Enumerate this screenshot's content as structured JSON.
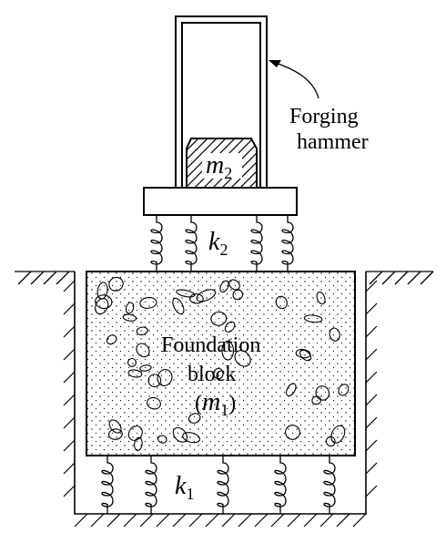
{
  "labels": {
    "hammer_line1": "Forging",
    "hammer_line2": "hammer",
    "foundation_line1": "Foundation",
    "foundation_line2": "block",
    "foundation_mass_open": "(",
    "foundation_mass_symbol": "m",
    "foundation_mass_sub": "1",
    "foundation_mass_close": ")",
    "hammer_mass_symbol": "m",
    "hammer_mass_sub": "2",
    "upper_spring_symbol": "k",
    "upper_spring_sub": "2",
    "lower_spring_symbol": "k",
    "lower_spring_sub": "1"
  },
  "colors": {
    "ink": "#000000",
    "paper": "#ffffff"
  }
}
